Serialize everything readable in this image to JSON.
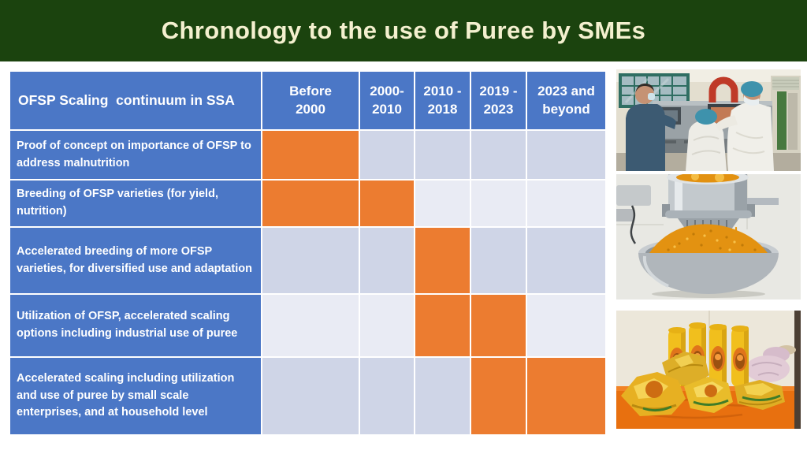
{
  "slide": {
    "title": "Chronology to the use of Puree by SMEs",
    "colors": {
      "band_green": "#1b430e",
      "title_text": "#f4f0cf",
      "header_blue": "#4b77c6",
      "active_orange": "#ec7c30",
      "row_band_dark": "#cfd5e7",
      "row_band_light": "#e9ebf4",
      "grid_line": "#ffffff",
      "page_background": "#ffffff"
    }
  },
  "table": {
    "corner_header": "OFSP Scaling  continuum in SSA",
    "columns": [
      "Before\n2000",
      "2000-\n2010",
      "2010 -\n2018",
      "2019 -\n2023",
      "2023 and\nbeyond"
    ],
    "rows": [
      {
        "label": "Proof of concept on importance of OFSP to address malnutrition",
        "marks": [
          true,
          false,
          false,
          false,
          false
        ]
      },
      {
        "label": "Breeding of OFSP varieties (for yield, nutrition)",
        "marks": [
          true,
          true,
          false,
          false,
          false
        ]
      },
      {
        "label": "Accelerated breeding of more OFSP varieties, for diversified use and adaptation",
        "marks": [
          false,
          false,
          true,
          false,
          false
        ]
      },
      {
        "label": "Utilization of OFSP, accelerated scaling options including industrial use of puree",
        "marks": [
          false,
          false,
          true,
          true,
          false
        ]
      },
      {
        "label": "Accelerated scaling including utilization and use of puree by small scale enterprises, and at household level",
        "marks": [
          false,
          false,
          false,
          true,
          true
        ]
      }
    ]
  },
  "photos": [
    {
      "name": "processing-facility",
      "alt": "People in protective clothing observing puree processing machinery"
    },
    {
      "name": "puree-extrusion",
      "alt": "Machine extruding orange sweet potato puree into a steel bowl"
    },
    {
      "name": "packaged-products",
      "alt": "Puree-based packaged snack products displayed on an orange table"
    }
  ]
}
